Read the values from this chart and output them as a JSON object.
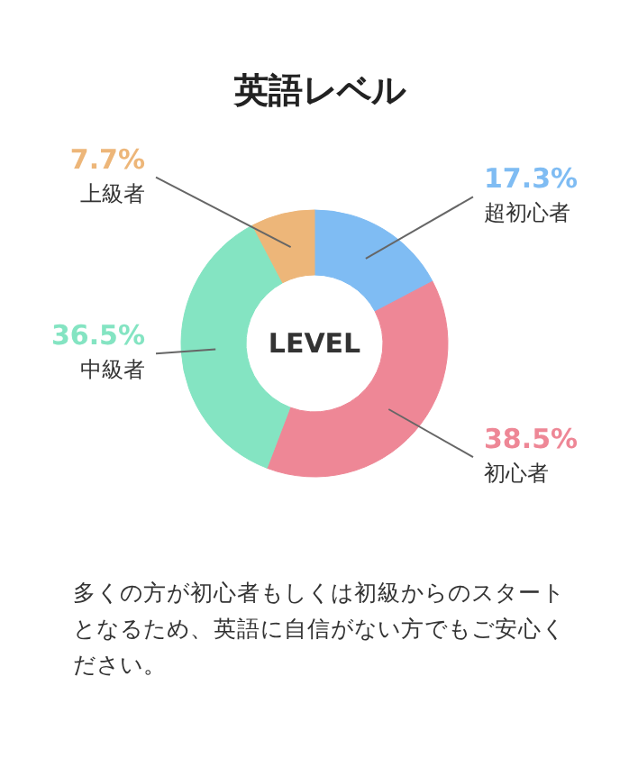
{
  "chart_data": {
    "type": "donut",
    "title": "英語レベル",
    "categories": [
      "超初心者",
      "初心者",
      "中級者",
      "上級者"
    ],
    "values": [
      17.3,
      38.5,
      36.5,
      7.7
    ],
    "value_labels": [
      "17.3%",
      "38.5%",
      "36.5%",
      "7.7%"
    ],
    "colors": [
      "#7fbcf3",
      "#ee8796",
      "#84e4c2",
      "#edb679"
    ],
    "annotations": [
      "LEVEL",
      "多くの方が初心者もしくは初級からのスタートとなるため、英語に自信がない方でもご安心ください。"
    ]
  }
}
